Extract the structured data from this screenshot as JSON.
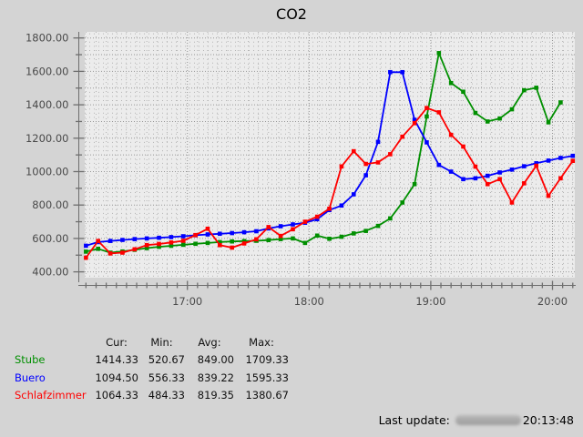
{
  "title": "CO2",
  "colors": {
    "bg": "#d4d4d4",
    "plot_bg": "#ececec",
    "grid_minor": "#b4b4b4",
    "grid_major": "#969696",
    "axis": "#6e6e6e",
    "axis_label": "#4a4a4a",
    "stube": "#008f00",
    "buero": "#0000ff",
    "schlafzimmer": "#ff0000"
  },
  "chart_data": {
    "type": "line",
    "title": "CO2",
    "ylabel": "",
    "xlabel": "",
    "ylim": [
      360,
      1840
    ],
    "y_tick_step": 200,
    "y_tick_labels": [
      "400.00",
      "600.00",
      "800.00",
      "1000.00",
      "1200.00",
      "1400.00",
      "1600.00",
      "1800.00"
    ],
    "x_tick_labels": [
      "17:00",
      "18:00",
      "19:00",
      "20:00"
    ],
    "grid": "dotted",
    "legend_position": "bottom-table",
    "x": [
      "16:10",
      "16:16",
      "16:22",
      "16:28",
      "16:34",
      "16:40",
      "16:46",
      "16:52",
      "16:58",
      "17:04",
      "17:10",
      "17:16",
      "17:22",
      "17:28",
      "17:34",
      "17:40",
      "17:46",
      "17:52",
      "17:58",
      "18:04",
      "18:10",
      "18:16",
      "18:22",
      "18:28",
      "18:34",
      "18:40",
      "18:46",
      "18:52",
      "18:58",
      "19:04",
      "19:10",
      "19:16",
      "19:22",
      "19:28",
      "19:34",
      "19:40",
      "19:46",
      "19:52",
      "19:58",
      "20:04",
      "20:10"
    ],
    "series": [
      {
        "name": "Stube",
        "color_key": "stube",
        "values": [
          521,
          538,
          515,
          522,
          532,
          542,
          550,
          556,
          562,
          568,
          573,
          578,
          582,
          584,
          586,
          590,
          596,
          600,
          573,
          617,
          598,
          610,
          630,
          645,
          675,
          720,
          815,
          925,
          1330,
          1709.33,
          1530,
          1478,
          1351,
          1300,
          1318,
          1373,
          1487,
          1502,
          1295,
          1414.33,
          null
        ]
      },
      {
        "name": "Buero",
        "color_key": "buero",
        "values": [
          556.33,
          578,
          585,
          591,
          596,
          600,
          604,
          608,
          613,
          619,
          624,
          628,
          632,
          637,
          643,
          660,
          673,
          684,
          694,
          715,
          770,
          797,
          864,
          978,
          1178,
          1595.33,
          1595.33,
          1310,
          1175,
          1040,
          1000,
          955,
          960,
          975,
          995,
          1012,
          1032,
          1050,
          1066,
          1082,
          1094.5
        ]
      },
      {
        "name": "Schlafzimmer",
        "color_key": "schlafzimmer",
        "values": [
          484.33,
          585,
          510,
          515,
          535,
          560,
          567,
          576,
          586,
          620,
          658,
          560,
          545,
          570,
          595,
          668,
          615,
          655,
          700,
          730,
          778,
          1031,
          1122,
          1046,
          1055,
          1104,
          1209,
          1290,
          1380.67,
          1355,
          1220,
          1150,
          1030,
          925,
          955,
          815,
          930,
          1035,
          855,
          960,
          1064.33
        ]
      }
    ]
  },
  "legend": {
    "headers": [
      "Cur:",
      "Min:",
      "Avg:",
      "Max:"
    ],
    "rows": [
      {
        "label": "Stube",
        "values": [
          "1414.33",
          "520.67",
          "849.00",
          "1709.33"
        ]
      },
      {
        "label": "Buero",
        "values": [
          "1094.50",
          "556.33",
          "839.22",
          "1595.33"
        ]
      },
      {
        "label": "Schlafzimmer",
        "values": [
          "1064.33",
          "484.33",
          "819.35",
          "1380.67"
        ]
      }
    ]
  },
  "footer": {
    "label": "Last update:",
    "time": "20:13:48",
    "redacted_segment": true
  }
}
